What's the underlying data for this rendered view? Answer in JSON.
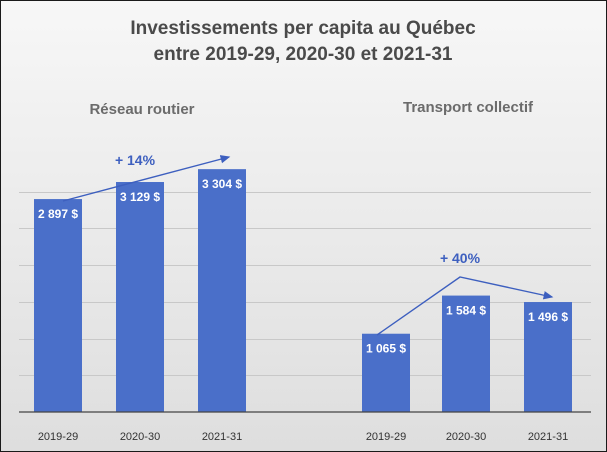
{
  "chart_data": {
    "type": "bar",
    "title": [
      "Investissements per capita au Québec",
      "entre 2019-29, 2020-30 et 2021-31"
    ],
    "xlabel": "",
    "ylabel": "",
    "ylim": [
      0,
      4000
    ],
    "grid": true,
    "legend": "none",
    "groups": [
      {
        "name": "Réseau routier",
        "categories": [
          "2019-29",
          "2020-30",
          "2021-31"
        ],
        "values": [
          2897,
          3129,
          3304
        ],
        "labels": [
          "2 897 $",
          "3 129 $",
          "3 304 $"
        ],
        "annotation": "+ 14%"
      },
      {
        "name": "Transport collectif",
        "categories": [
          "2019-29",
          "2020-30",
          "2021-31"
        ],
        "values": [
          1065,
          1584,
          1496
        ],
        "labels": [
          "1 065 $",
          "1 584 $",
          "1 496 $"
        ],
        "annotation": "+ 40%"
      }
    ],
    "colors": {
      "bar": "#4a6fc9",
      "annotation": "#3d5fbf"
    }
  }
}
